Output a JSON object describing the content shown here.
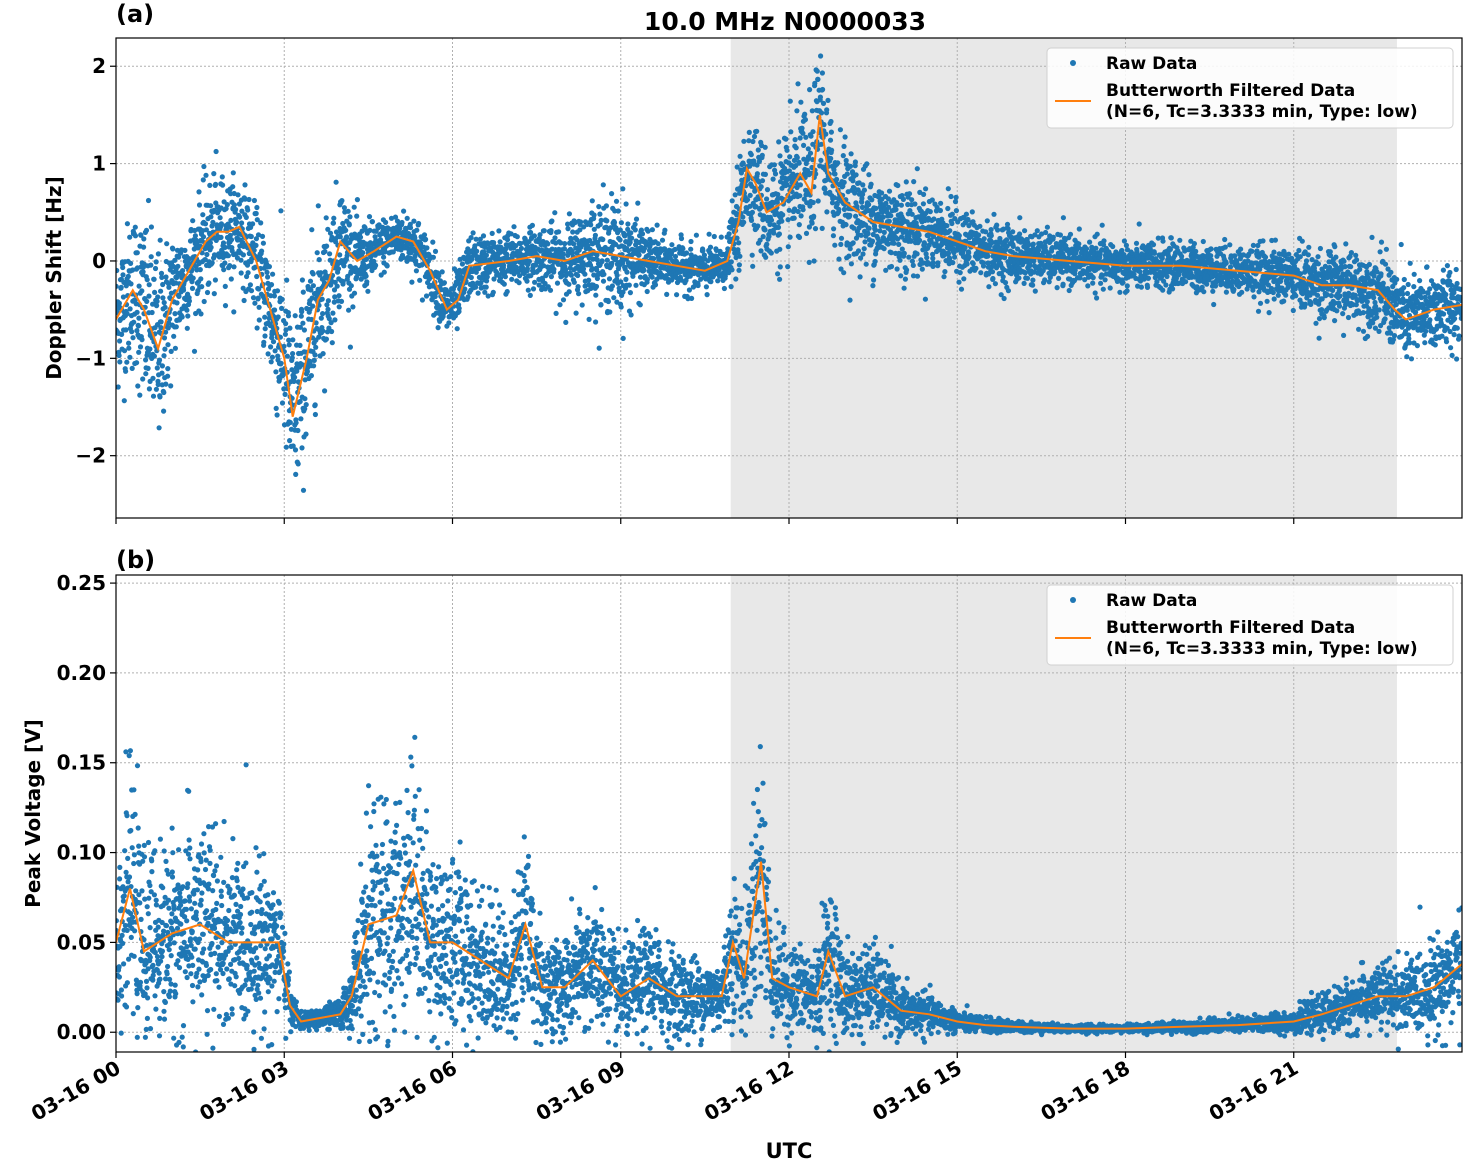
{
  "title": "10.0 MHz N0000033",
  "x_tick_labels": [
    "03-16 00",
    "03-16 03",
    "03-16 06",
    "03-16 09",
    "03-16 12",
    "03-16 15",
    "03-16 18",
    "03-16 21"
  ],
  "xlabel": "UTC",
  "colors": {
    "raw": "#1f77b4",
    "filtered": "#ff7f0e",
    "shade": "#e8e8e8",
    "grid": "#b0b0b0"
  },
  "chart_data": [
    {
      "type": "scatter",
      "panel_label": "(a)",
      "ylabel": "Doppler Shift [Hz]",
      "x_unit": "hours UTC since 03-16 00",
      "xlim": [
        0,
        24
      ],
      "ylim": [
        -2.64,
        2.29
      ],
      "yticks": [
        -2,
        -1,
        0,
        1,
        2
      ],
      "y_tick_labels": [
        "−2",
        "−1",
        "0",
        "1",
        "2"
      ],
      "grid": true,
      "legend_placement": "top-right",
      "shaded_region": [
        10.96,
        22.84
      ],
      "legend": [
        "Raw Data",
        "Butterworth Filtered Data",
        "(N=6, Tc=3.3333 min, Type: low)"
      ],
      "series": [
        {
          "name": "Butterworth Filtered Data (N=6, Tc=3.3333 min, Type: low)",
          "x": [
            0,
            0.3,
            0.5,
            0.75,
            1.0,
            1.3,
            1.6,
            1.8,
            2.0,
            2.2,
            2.5,
            2.75,
            3.0,
            3.15,
            3.4,
            3.6,
            3.8,
            4.0,
            4.3,
            4.6,
            5.0,
            5.3,
            5.6,
            5.9,
            6.1,
            6.3,
            7.0,
            7.5,
            8.0,
            8.5,
            9.0,
            9.5,
            10.0,
            10.5,
            10.9,
            11.1,
            11.25,
            11.4,
            11.6,
            11.9,
            12.2,
            12.4,
            12.55,
            12.7,
            13.0,
            13.5,
            14.0,
            14.5,
            15.0,
            15.5,
            16.0,
            17.0,
            18.0,
            19.0,
            20.0,
            21.0,
            21.5,
            22.0,
            22.5,
            22.8,
            23.0,
            23.5,
            24.0
          ],
          "y": [
            -0.6,
            -0.3,
            -0.5,
            -0.9,
            -0.4,
            -0.1,
            0.2,
            0.3,
            0.3,
            0.35,
            0.0,
            -0.5,
            -1.0,
            -1.6,
            -1.0,
            -0.4,
            -0.2,
            0.2,
            0.0,
            0.1,
            0.25,
            0.2,
            -0.1,
            -0.5,
            -0.4,
            -0.05,
            0.0,
            0.05,
            0.0,
            0.1,
            0.05,
            0.0,
            -0.05,
            -0.1,
            0.0,
            0.4,
            0.95,
            0.8,
            0.5,
            0.6,
            0.9,
            0.7,
            1.5,
            0.9,
            0.6,
            0.4,
            0.35,
            0.3,
            0.2,
            0.1,
            0.05,
            0.0,
            -0.05,
            -0.05,
            -0.1,
            -0.15,
            -0.25,
            -0.25,
            -0.3,
            -0.5,
            -0.6,
            -0.5,
            -0.45
          ]
        },
        {
          "name": "Raw Data",
          "spread": [
            0.35,
            0.4,
            0.5,
            0.5,
            0.35,
            0.25,
            0.3,
            0.3,
            0.25,
            0.25,
            0.25,
            0.35,
            0.45,
            0.5,
            0.45,
            0.4,
            0.35,
            0.3,
            0.2,
            0.15,
            0.12,
            0.15,
            0.15,
            0.15,
            0.15,
            0.15,
            0.15,
            0.15,
            0.2,
            0.25,
            0.3,
            0.15,
            0.12,
            0.12,
            0.12,
            0.25,
            0.3,
            0.3,
            0.3,
            0.3,
            0.35,
            0.4,
            0.4,
            0.35,
            0.3,
            0.25,
            0.25,
            0.2,
            0.18,
            0.15,
            0.15,
            0.12,
            0.12,
            0.12,
            0.12,
            0.15,
            0.18,
            0.18,
            0.2,
            0.22,
            0.22,
            0.2,
            0.2
          ]
        }
      ]
    },
    {
      "type": "scatter",
      "panel_label": "(b)",
      "ylabel": "Peak Voltage [V]",
      "x_unit": "hours UTC since 03-16 00",
      "xlim": [
        0,
        24
      ],
      "ylim": [
        -0.011,
        0.2545
      ],
      "yticks": [
        0,
        0.05,
        0.1,
        0.15,
        0.2,
        0.25
      ],
      "y_tick_labels": [
        "0.00",
        "0.05",
        "0.10",
        "0.15",
        "0.20",
        "0.25"
      ],
      "grid": true,
      "legend_placement": "top-right",
      "shaded_region": [
        10.96,
        22.84
      ],
      "legend": [
        "Raw Data",
        "Butterworth Filtered Data",
        "(N=6, Tc=3.3333 min, Type: low)"
      ],
      "series": [
        {
          "name": "Butterworth Filtered Data (N=6, Tc=3.3333 min, Type: low)",
          "x": [
            0,
            0.25,
            0.5,
            1,
            1.5,
            2,
            2.5,
            2.9,
            3.1,
            3.3,
            4,
            4.2,
            4.5,
            5,
            5.3,
            5.6,
            6,
            6.5,
            7,
            7.3,
            7.6,
            8,
            8.5,
            9,
            9.5,
            10,
            10.5,
            10.8,
            11,
            11.2,
            11.5,
            11.7,
            12,
            12.5,
            12.7,
            13,
            13.5,
            14,
            14.5,
            15,
            15.5,
            16,
            17,
            18,
            19,
            20,
            21,
            21.5,
            22,
            22.5,
            23,
            23.5,
            24
          ],
          "y": [
            0.05,
            0.08,
            0.045,
            0.055,
            0.06,
            0.05,
            0.05,
            0.05,
            0.015,
            0.006,
            0.01,
            0.02,
            0.06,
            0.065,
            0.09,
            0.05,
            0.05,
            0.04,
            0.03,
            0.06,
            0.025,
            0.025,
            0.04,
            0.02,
            0.03,
            0.02,
            0.02,
            0.02,
            0.05,
            0.03,
            0.095,
            0.03,
            0.025,
            0.02,
            0.045,
            0.02,
            0.025,
            0.012,
            0.01,
            0.006,
            0.004,
            0.003,
            0.002,
            0.002,
            0.003,
            0.004,
            0.006,
            0.01,
            0.015,
            0.02,
            0.02,
            0.025,
            0.038
          ]
        },
        {
          "name": "Raw Data",
          "spread": [
            0.025,
            0.03,
            0.025,
            0.025,
            0.03,
            0.025,
            0.022,
            0.02,
            0.006,
            0.002,
            0.004,
            0.01,
            0.03,
            0.032,
            0.035,
            0.025,
            0.025,
            0.02,
            0.018,
            0.025,
            0.014,
            0.014,
            0.018,
            0.012,
            0.015,
            0.012,
            0.01,
            0.01,
            0.02,
            0.015,
            0.04,
            0.015,
            0.012,
            0.012,
            0.02,
            0.012,
            0.012,
            0.007,
            0.005,
            0.003,
            0.002,
            0.0015,
            0.001,
            0.001,
            0.0015,
            0.002,
            0.003,
            0.005,
            0.007,
            0.009,
            0.01,
            0.012,
            0.016
          ]
        }
      ]
    }
  ]
}
